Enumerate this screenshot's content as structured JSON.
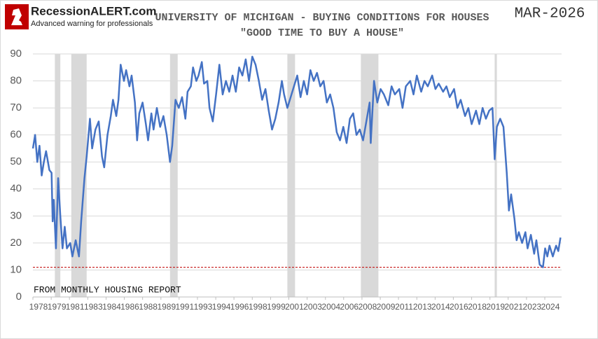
{
  "logo": {
    "name": "RecessionALERT.com",
    "tagline": "Advanced warning for professionals"
  },
  "chart_data": {
    "type": "line",
    "title": "UNIVERSITY OF MICHIGAN - BUYING CONDITIONS FOR HOUSES",
    "subtitle": "\"GOOD TIME TO BUY A HOUSE\"",
    "date_label": "MAR-2026",
    "annotation": "FROM MONTHLY HOUSING REPORT",
    "x": [
      1978.0,
      1978.2,
      1978.4,
      1978.6,
      1978.8,
      1979.0,
      1979.2,
      1979.5,
      1979.7,
      1979.8,
      1979.9,
      1980.1,
      1980.3,
      1980.5,
      1980.7,
      1980.9,
      1981.1,
      1981.4,
      1981.6,
      1981.9,
      1982.2,
      1982.4,
      1982.7,
      1982.9,
      1983.2,
      1983.4,
      1983.7,
      1984.0,
      1984.3,
      1984.5,
      1984.8,
      1985.1,
      1985.3,
      1985.6,
      1985.8,
      1986.0,
      1986.3,
      1986.5,
      1986.8,
      1987.0,
      1987.3,
      1987.5,
      1987.7,
      1988.0,
      1988.3,
      1988.5,
      1988.8,
      1989.0,
      1989.3,
      1989.6,
      1989.9,
      1990.2,
      1990.5,
      1990.7,
      1991.0,
      1991.3,
      1991.6,
      1991.9,
      1992.1,
      1992.4,
      1992.6,
      1992.9,
      1993.1,
      1993.4,
      1993.6,
      1993.9,
      1994.1,
      1994.4,
      1994.7,
      1995.0,
      1995.3,
      1995.6,
      1995.9,
      1996.2,
      1996.5,
      1996.8,
      1997.1,
      1997.4,
      1997.7,
      1998.0,
      1998.3,
      1998.6,
      1998.9,
      1999.2,
      1999.5,
      1999.8,
      2000.1,
      2000.4,
      2000.7,
      2000.9,
      2001.2,
      2001.5,
      2001.8,
      2002.1,
      2002.4,
      2002.7,
      2003.0,
      2003.3,
      2003.6,
      2003.9,
      2004.2,
      2004.5,
      2004.8,
      2005.1,
      2005.4,
      2005.7,
      2006.0,
      2006.3,
      2006.6,
      2006.9,
      2007.2,
      2007.5,
      2007.8,
      2008.1,
      2008.4,
      2008.7,
      2008.8,
      2009.1,
      2009.4,
      2009.7,
      2010.0,
      2010.4,
      2010.7,
      2011.0,
      2011.4,
      2011.7,
      2012.0,
      2012.4,
      2012.7,
      2013.0,
      2013.4,
      2013.7,
      2014.0,
      2014.4,
      2014.7,
      2015.0,
      2015.4,
      2015.7,
      2016.0,
      2016.4,
      2016.7,
      2017.0,
      2017.4,
      2017.7,
      2018.0,
      2018.4,
      2018.7,
      2019.0,
      2019.3,
      2019.6,
      2019.9,
      2020.1,
      2020.3,
      2020.6,
      2020.9,
      2021.2,
      2021.4,
      2021.6,
      2021.9,
      2022.1,
      2022.3,
      2022.6,
      2022.9,
      2023.1,
      2023.4,
      2023.7,
      2023.9,
      2024.2,
      2024.5,
      2024.7,
      2024.9,
      2025.1,
      2025.4,
      2025.7,
      2025.9,
      2026.1
    ],
    "series": [
      {
        "color": "#4472c4",
        "values": [
          55,
          60,
          50,
          56,
          45,
          50,
          54,
          47,
          46,
          28,
          36,
          18,
          44,
          30,
          18,
          26,
          18,
          20,
          15,
          21,
          15,
          28,
          44,
          52,
          66,
          55,
          62,
          65,
          52,
          48,
          60,
          67,
          73,
          67,
          73,
          86,
          80,
          84,
          78,
          82,
          72,
          58,
          68,
          72,
          64,
          58,
          68,
          62,
          70,
          63,
          67,
          60,
          50,
          56,
          73,
          70,
          74,
          66,
          76,
          78,
          85,
          80,
          82,
          87,
          79,
          80,
          70,
          65,
          75,
          86,
          75,
          80,
          76,
          82,
          76,
          85,
          82,
          88,
          80,
          89,
          86,
          80,
          73,
          77,
          69,
          62,
          66,
          72,
          80,
          75,
          70,
          74,
          78,
          82,
          74,
          80,
          75,
          84,
          80,
          83,
          78,
          80,
          72,
          75,
          70,
          61,
          58,
          63,
          57,
          66,
          68,
          60,
          62,
          58,
          65,
          72,
          57,
          80,
          72,
          77,
          75,
          71,
          78,
          75,
          77,
          70,
          78,
          80,
          75,
          82,
          76,
          80,
          78,
          82,
          77,
          79,
          76,
          78,
          74,
          77,
          70,
          73,
          67,
          70,
          64,
          69,
          64,
          70,
          66,
          69,
          70,
          51,
          63,
          66,
          63,
          46,
          32,
          38,
          29,
          21,
          24,
          20,
          24,
          18,
          23,
          16,
          21,
          12,
          11,
          18,
          15,
          19,
          15,
          19,
          17,
          22
        ]
      }
    ],
    "shaded_ranges": [
      [
        1980.0,
        1980.5
      ],
      [
        1981.5,
        1982.9
      ],
      [
        1990.5,
        1991.2
      ],
      [
        2001.2,
        2001.9
      ],
      [
        2007.9,
        2009.5
      ],
      [
        2020.1,
        2020.3
      ]
    ],
    "shade_color": "#d9d9d9",
    "reference_line": {
      "value": 11,
      "color": "#c00000"
    },
    "xlim": [
      1978,
      2026.2
    ],
    "xticks": [
      1978,
      {
        "value": 1979.67,
        "label": "1979"
      },
      {
        "value": 1981.33,
        "label": "1981"
      },
      1983,
      {
        "value": 1984.67,
        "label": "1984"
      },
      {
        "value": 1986.33,
        "label": "1986"
      },
      1988,
      {
        "value": 1989.67,
        "label": "1989"
      },
      {
        "value": 1991.33,
        "label": "1991"
      },
      1993,
      {
        "value": 1994.67,
        "label": "1994"
      },
      {
        "value": 1996.33,
        "label": "1996"
      },
      1998,
      {
        "value": 1999.67,
        "label": "1999"
      },
      {
        "value": 2001.33,
        "label": "2001"
      },
      2003,
      {
        "value": 2004.67,
        "label": "2004"
      },
      {
        "value": 2006.33,
        "label": "2006"
      },
      2008,
      {
        "value": 2009.67,
        "label": "2009"
      },
      {
        "value": 2011.33,
        "label": "2011"
      },
      2013,
      {
        "value": 2014.67,
        "label": "2014"
      },
      {
        "value": 2016.33,
        "label": "2016"
      },
      2018,
      {
        "value": 2019.67,
        "label": "2019"
      },
      {
        "value": 2021.33,
        "label": "2021"
      },
      2023,
      {
        "value": 2024.67,
        "label": "2024"
      }
    ],
    "ylim": [
      0,
      90
    ],
    "yticks": [
      0,
      10,
      20,
      30,
      40,
      50,
      60,
      70,
      80,
      90
    ],
    "grid": true
  }
}
